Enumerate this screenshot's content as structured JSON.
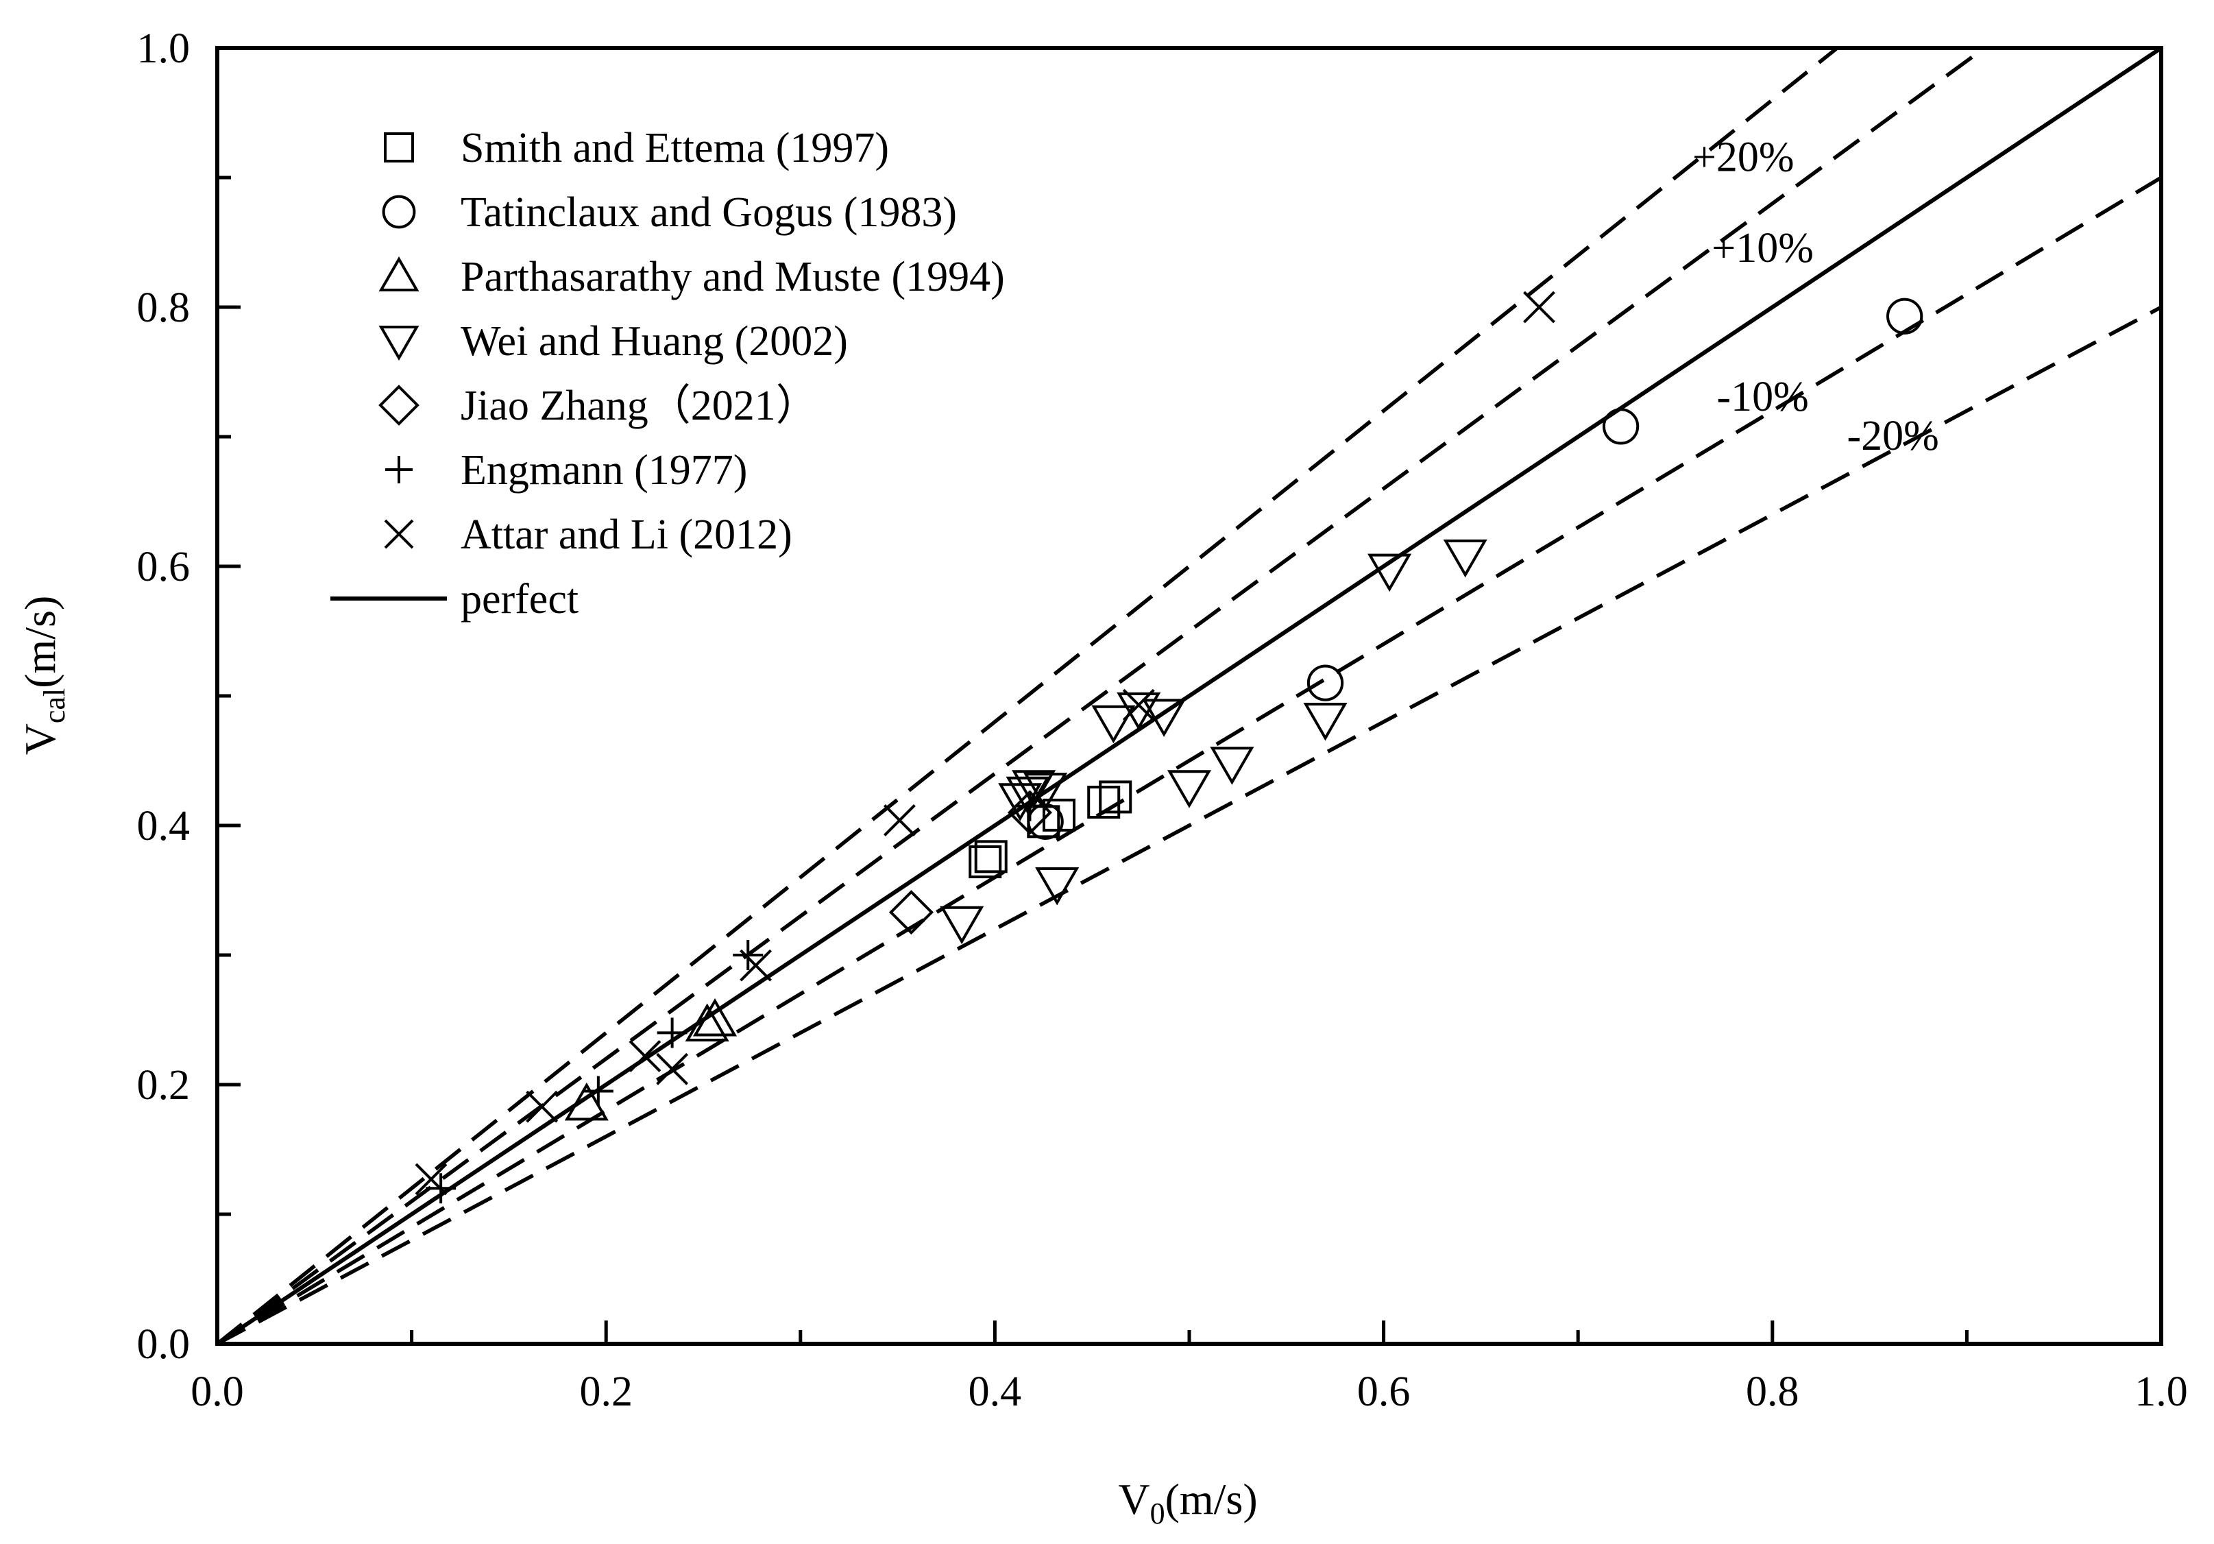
{
  "chart_data": {
    "type": "scatter",
    "xlabel": "V0(m/s)",
    "ylabel": "Vcal(m/s)",
    "xlabel_parts": {
      "base": "V",
      "sub": "0",
      "unit": "(m/s)"
    },
    "ylabel_parts": {
      "base": "V",
      "sub": "cal",
      "unit": "(m/s)"
    },
    "xlim": [
      0.0,
      1.0
    ],
    "ylim": [
      0.0,
      1.0
    ],
    "xticks": [
      "0.0",
      "0.2",
      "0.4",
      "0.6",
      "0.8",
      "1.0"
    ],
    "yticks": [
      "0.0",
      "0.2",
      "0.4",
      "0.6",
      "0.8",
      "1.0"
    ],
    "grid": false,
    "legend_position": "top-left",
    "reference_lines": [
      {
        "name": "perfect",
        "slope": 1.0,
        "style": "solid",
        "label": ""
      },
      {
        "name": "+20%",
        "slope": 1.2,
        "style": "dashed",
        "label": "+20%",
        "label_at": [
          0.785,
          0.905
        ]
      },
      {
        "name": "+10%",
        "slope": 1.1,
        "style": "dashed",
        "label": "+10%",
        "label_at": [
          0.795,
          0.835
        ]
      },
      {
        "name": "-10%",
        "slope": 0.9,
        "style": "dashed",
        "label": "-10%",
        "label_at": [
          0.795,
          0.72
        ]
      },
      {
        "name": "-20%",
        "slope": 0.8,
        "style": "dashed",
        "label": "-20%",
        "label_at": [
          0.862,
          0.69
        ]
      }
    ],
    "series": [
      {
        "name": "Smith and Ettema (1997)",
        "marker": "square",
        "points": [
          [
            0.395,
            0.372
          ],
          [
            0.398,
            0.376
          ],
          [
            0.425,
            0.403
          ],
          [
            0.433,
            0.408
          ],
          [
            0.456,
            0.418
          ],
          [
            0.462,
            0.422
          ]
        ]
      },
      {
        "name": "Tatinclaux and Gogus (1983)",
        "marker": "circle",
        "points": [
          [
            0.426,
            0.403
          ],
          [
            0.57,
            0.51
          ],
          [
            0.722,
            0.708
          ],
          [
            0.868,
            0.793
          ]
        ]
      },
      {
        "name": "Parthasarathy and Muste (1994)",
        "marker": "triangle-up",
        "points": [
          [
            0.19,
            0.185
          ],
          [
            0.252,
            0.246
          ],
          [
            0.256,
            0.25
          ]
        ]
      },
      {
        "name": "Wei and Huang (2002)",
        "marker": "triangle-down",
        "points": [
          [
            0.383,
            0.325
          ],
          [
            0.413,
            0.42
          ],
          [
            0.417,
            0.425
          ],
          [
            0.42,
            0.43
          ],
          [
            0.426,
            0.428
          ],
          [
            0.432,
            0.355
          ],
          [
            0.461,
            0.48
          ],
          [
            0.474,
            0.49
          ],
          [
            0.487,
            0.485
          ],
          [
            0.5,
            0.43
          ],
          [
            0.522,
            0.448
          ],
          [
            0.57,
            0.482
          ],
          [
            0.603,
            0.597
          ],
          [
            0.642,
            0.608
          ]
        ]
      },
      {
        "name": "Jiao Zhang（2021）",
        "marker": "diamond",
        "points": [
          [
            0.357,
            0.333
          ],
          [
            0.418,
            0.41
          ]
        ]
      },
      {
        "name": "Engmann (1977)",
        "marker": "plus",
        "points": [
          [
            0.115,
            0.12
          ],
          [
            0.196,
            0.195
          ],
          [
            0.234,
            0.24
          ],
          [
            0.273,
            0.3
          ],
          [
            0.418,
            0.415
          ]
        ]
      },
      {
        "name": "Attar and Li (2012)",
        "marker": "x",
        "points": [
          [
            0.11,
            0.127
          ],
          [
            0.167,
            0.183
          ],
          [
            0.22,
            0.222
          ],
          [
            0.234,
            0.212
          ],
          [
            0.277,
            0.292
          ],
          [
            0.351,
            0.404
          ],
          [
            0.474,
            0.493
          ],
          [
            0.68,
            0.8
          ]
        ]
      }
    ],
    "legend": [
      {
        "label": "Smith and Ettema (1997)",
        "marker": "square"
      },
      {
        "label": "Tatinclaux and Gogus (1983)",
        "marker": "circle"
      },
      {
        "label": "Parthasarathy and Muste (1994)",
        "marker": "triangle-up"
      },
      {
        "label": "Wei and Huang (2002)",
        "marker": "triangle-down"
      },
      {
        "label": "Jiao Zhang（2021）",
        "marker": "diamond"
      },
      {
        "label": "Engmann (1977)",
        "marker": "plus"
      },
      {
        "label": "Attar and Li (2012)",
        "marker": "x"
      },
      {
        "label": "perfect",
        "marker": "line"
      }
    ]
  }
}
